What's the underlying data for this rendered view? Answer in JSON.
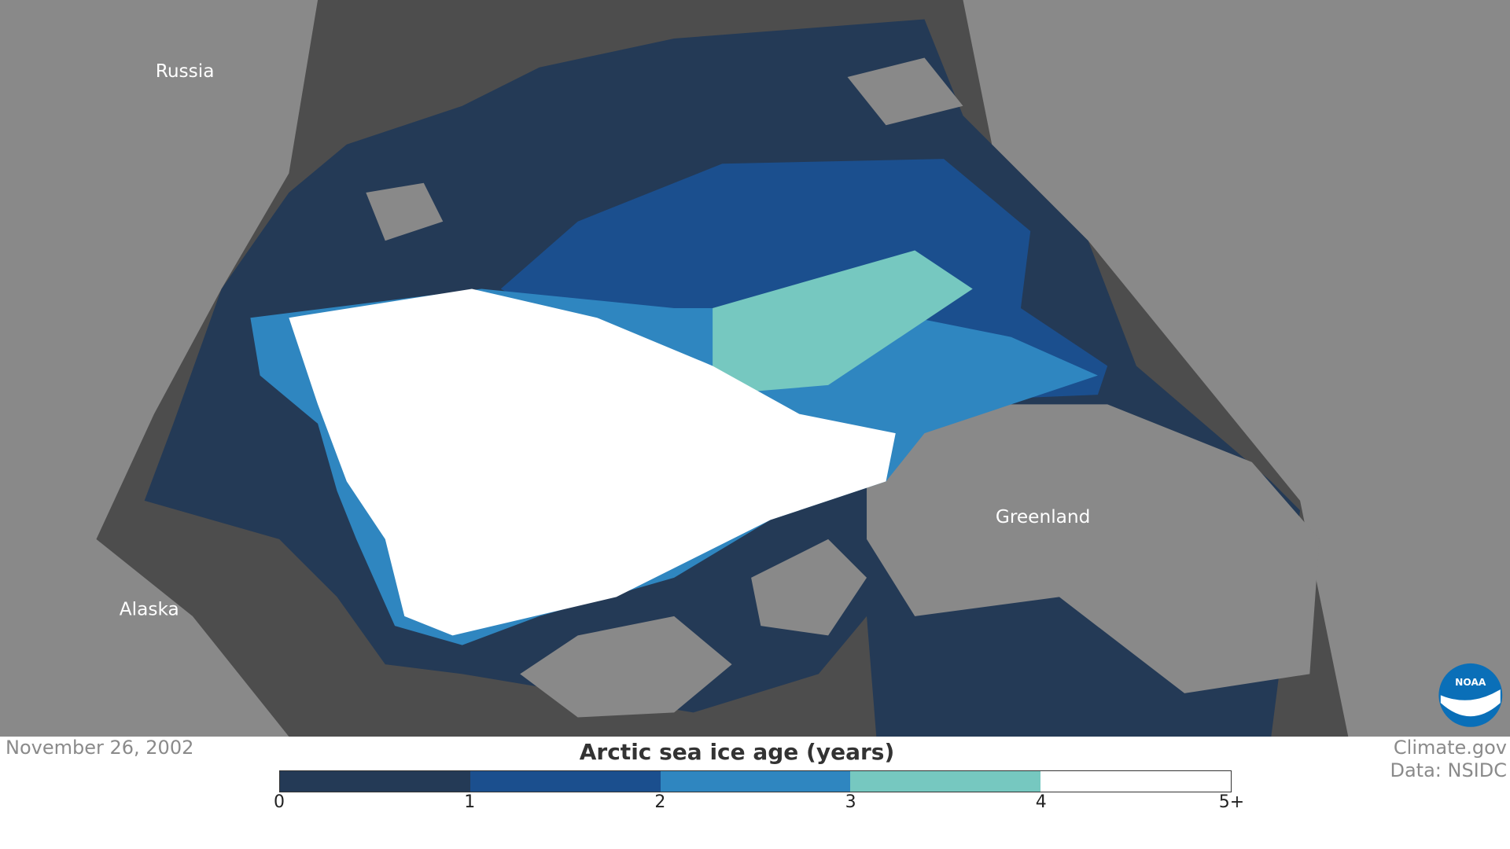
{
  "map": {
    "labels": [
      "Russia",
      "Alaska",
      "Greenland"
    ],
    "logo": "NOAA"
  },
  "footer": {
    "date": "November 26, 2002",
    "credit": "Climate.gov",
    "source": "Data: NSIDC"
  },
  "legend": {
    "title": "Arctic sea ice age (years)",
    "colors": [
      "#243a56",
      "#1b4f8e",
      "#2f86c0",
      "#76c8c0",
      "#ffffff"
    ],
    "ticks": [
      "0",
      "1",
      "2",
      "3",
      "4",
      "5+"
    ]
  }
}
